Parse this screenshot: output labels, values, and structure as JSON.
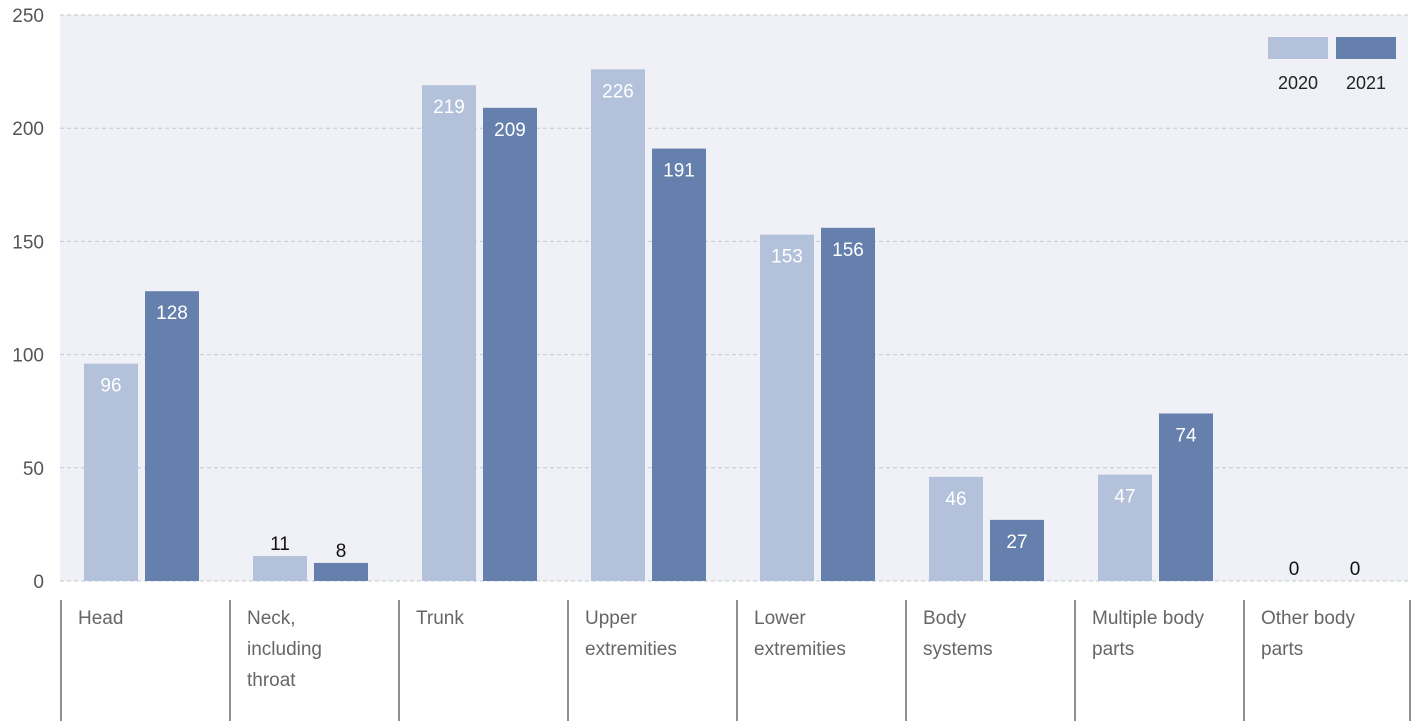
{
  "chart_data": {
    "type": "bar",
    "title": "",
    "xlabel": "",
    "ylabel": "",
    "ylim": [
      0,
      250
    ],
    "yticks": [
      0,
      50,
      100,
      150,
      200,
      250
    ],
    "grid": true,
    "legend_position": "top-right",
    "categories": [
      [
        "Head"
      ],
      [
        "Neck,",
        "including",
        "throat"
      ],
      [
        "Trunk"
      ],
      [
        "Upper",
        "extremities"
      ],
      [
        "Lower",
        "extremities"
      ],
      [
        "Body",
        "systems"
      ],
      [
        "Multiple body",
        "parts"
      ],
      [
        "Other body",
        "parts"
      ]
    ],
    "series": [
      {
        "name": "2020",
        "color": "#b3c1da",
        "values": [
          96,
          11,
          219,
          226,
          153,
          46,
          47,
          0
        ]
      },
      {
        "name": "2021",
        "color": "#6580ad",
        "values": [
          128,
          8,
          209,
          191,
          156,
          27,
          74,
          0
        ]
      }
    ],
    "plot_background": "#eff1f7"
  }
}
